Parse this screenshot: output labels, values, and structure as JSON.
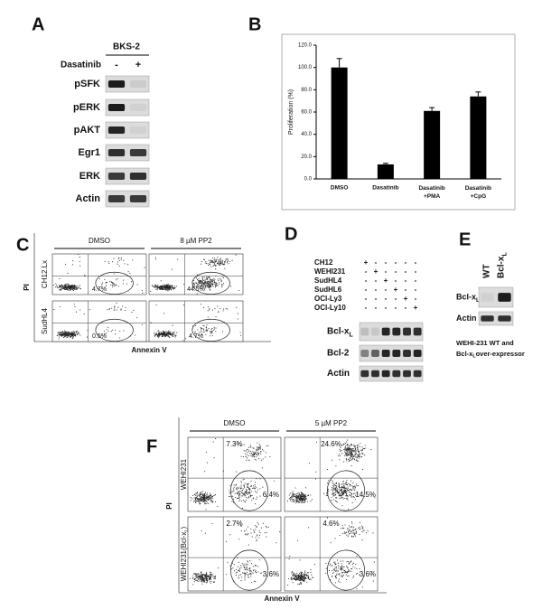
{
  "panels": {
    "A": {
      "letter": "A",
      "cell_line": "BKS-2",
      "treatment": "Dasatinib",
      "lanes": [
        "-",
        "+"
      ],
      "rows": [
        "pSFK",
        "pERK",
        "pAKT",
        "Egr1",
        "ERK",
        "Actin"
      ]
    },
    "C": {
      "letter": "C",
      "columns": [
        "DMSO",
        "8 µM PP2"
      ],
      "rows": [
        "CH12.Lx",
        "SudHL4"
      ],
      "percentages": [
        [
          "4.7%",
          "44.5%"
        ],
        [
          "0.5%",
          "4.7%"
        ]
      ],
      "y_label": "PI",
      "x_label": "Annexin V"
    },
    "D": {
      "letter": "D",
      "cell_lines": [
        "CH12",
        "WEHI231",
        "SudHL4",
        "SudHL6",
        "OCI-Ly3",
        "OCI-Ly10"
      ],
      "signs": [
        [
          "+",
          "-",
          "-",
          "-",
          "-",
          "-"
        ],
        [
          "-",
          "+",
          "-",
          "-",
          "-",
          "-"
        ],
        [
          "-",
          "-",
          "+",
          "-",
          "-",
          "-"
        ],
        [
          "-",
          "-",
          "-",
          "+",
          "-",
          "-"
        ],
        [
          "-",
          "-",
          "-",
          "-",
          "+",
          "-"
        ],
        [
          "-",
          "-",
          "-",
          "-",
          "-",
          "+"
        ]
      ],
      "blots": [
        {
          "label": "Bcl-x",
          "sub": "L"
        },
        {
          "label": "Bcl-2"
        },
        {
          "label": "Actin"
        }
      ]
    },
    "E": {
      "letter": "E",
      "lanes": [
        {
          "label": "WT"
        },
        {
          "label": "Bcl-x",
          "sub": "L"
        }
      ],
      "blots": [
        {
          "label": "Bcl-x",
          "sub": "L"
        },
        {
          "label": "Actin"
        }
      ],
      "caption": [
        {
          "label": "WEHI-231 WT and"
        },
        {
          "label": "Bcl-x",
          "sub": "L",
          "after": "over-expressor"
        }
      ]
    },
    "F": {
      "letter": "F",
      "columns": [
        "DMSO",
        "5 µM PP2"
      ],
      "rows": [
        {
          "label": "WEHI231"
        },
        {
          "label": "WEHI231(Bcl-x",
          "sub": "L",
          "after": ")"
        }
      ],
      "upper": [
        [
          "7.3%",
          "24.6%"
        ],
        [
          "2.7%",
          "4.6%"
        ]
      ],
      "lower": [
        [
          "6.4%",
          "14.5%"
        ],
        [
          "3.6%",
          "3.6%"
        ]
      ],
      "y_label": "PI",
      "x_label": "Annexin V"
    }
  },
  "chart_data": {
    "type": "bar",
    "letter": "B",
    "y_label": "Proliferation (%)",
    "categories": [
      "DMSO",
      "Dasatinib",
      "Dasatinib +PMA",
      "Dasatinib +CpG"
    ],
    "values": [
      100,
      13,
      61,
      74
    ],
    "errors": [
      8,
      1,
      3,
      4
    ],
    "color": "#000000",
    "ylim": [
      0,
      120
    ],
    "yticks": [
      {
        "value": 0,
        "label": "0.0"
      },
      {
        "value": 20,
        "label": "20.0"
      },
      {
        "value": 40,
        "label": "40.0"
      },
      {
        "value": 60,
        "label": "60.0"
      },
      {
        "value": 80,
        "label": "80.0"
      },
      {
        "value": 100,
        "label": "100.0"
      },
      {
        "value": 120,
        "label": "120.0"
      }
    ]
  }
}
